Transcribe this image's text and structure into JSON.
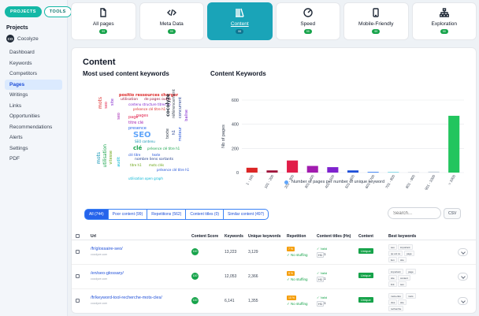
{
  "sidebar": {
    "toggle": [
      "PROJECTS",
      "TOOLS"
    ],
    "heading": "Projects",
    "project": {
      "initials": "CO",
      "name": "Cocolyze"
    },
    "items": [
      "Dashboard",
      "Keywords",
      "Competitors",
      "Pages",
      "Writings",
      "Links",
      "Opportunities",
      "Recommendations",
      "Alerts",
      "Settings",
      "PDF"
    ]
  },
  "cards": [
    {
      "label": "All pages",
      "badge": "99",
      "icon": "page-icon"
    },
    {
      "label": "Meta Data",
      "badge": "99",
      "icon": "code-icon"
    },
    {
      "label": "Content",
      "badge": "99",
      "icon": "books-icon"
    },
    {
      "label": "Speed",
      "badge": "99",
      "icon": "speedometer-icon"
    },
    {
      "label": "Mobile-Friendly",
      "badge": "99",
      "icon": "mobile-icon"
    },
    {
      "label": "Exploration",
      "badge": "99",
      "icon": "sitemap-icon"
    }
  ],
  "main": {
    "title": "Content",
    "left_heading": "Most used content keywords",
    "right_heading": "Content Keywords"
  },
  "wordcloud": [
    "positio ressources charger",
    "utilisation",
    "de pages outils",
    "contenu structure titres hn",
    "présence clé titre h1",
    "page",
    "pages",
    "titre clé",
    "presence",
    "SEO",
    "SEO contenu",
    "clé",
    "présence clé titre h1",
    "clé titre",
    "texte",
    "nombre liens sortants",
    "titre h1",
    "mots clés",
    "présence clé titre h1",
    "utilisation open graph",
    "mots",
    "seo",
    "site",
    "seo",
    "mots",
    "utilisation",
    "vitesse",
    "audit",
    "cocolyze",
    "référencement",
    "concurrent",
    "texte",
    "h1",
    "moteur",
    "balise"
  ],
  "chart_data": {
    "type": "bar",
    "title": "Content Keywords",
    "ylabel": "Nb of pages",
    "ylim": [
      0,
      600
    ],
    "yticks": [
      0,
      200,
      400,
      600
    ],
    "categories": [
      "1 - 100",
      "101 - 200",
      "201 - 300",
      "301 - 400",
      "401 - 500",
      "501 - 600",
      "601 - 700",
      "701 - 800",
      "801 - 900",
      "901 - 1000",
      "> 1000"
    ],
    "bar_colors": [
      "#dc2626",
      "#9f1239",
      "#e11d48",
      "#a21caf",
      "#7e22ce",
      "#1d4ed8",
      "#3b82f6",
      "#06b6d4",
      "#94a3b8",
      "#cbd5e1",
      "#22c55e"
    ],
    "values": [
      40,
      18,
      100,
      55,
      45,
      18,
      6,
      3,
      2,
      8,
      470
    ],
    "legend": "Number of pages per number of unique keyword"
  },
  "filters": [
    "All (744)",
    "Poor content (99)",
    "Repetitions (562)",
    "Content titles (0)",
    "Similar content (497)"
  ],
  "search": {
    "placeholder": "Search..."
  },
  "csv_label": "CSV",
  "table": {
    "headers": [
      "Url",
      "Content Score",
      "Keywords",
      "Unique keywords",
      "Repetition",
      "Content titles (Hn)",
      "Content",
      "Best keywords"
    ],
    "rows": [
      {
        "url": "/fr/glossaire-seo/",
        "url_sub": "cocolyze.com",
        "score": "100",
        "keywords": "13,223",
        "unique": "3,129",
        "repetition": "7 %",
        "nostuffing": "✓ No stuffing",
        "valid": "✓ Valid",
        "h1": "H1",
        "h1count": "1",
        "content": "Unique",
        "best": [
          "seo",
          "important",
          "qu est ce",
          "page",
          "lien",
          "site"
        ]
      },
      {
        "url": "/en/seo-glossary/",
        "url_sub": "cocolyze.com",
        "score": "100",
        "keywords": "12,053",
        "unique": "2,366",
        "repetition": "8 %",
        "nostuffing": "✓ No stuffing",
        "valid": "✓ Valid",
        "h1": "H1",
        "h1count": "1",
        "content": "Unique",
        "best": [
          "important",
          "page",
          "site",
          "content",
          "link",
          "seo"
        ]
      },
      {
        "url": "/fr/keyword-tool-recherche-mots-cles/",
        "url_sub": "cocolyze.com",
        "score": "100",
        "keywords": "6,141",
        "unique": "1,355",
        "repetition": "10 %",
        "nostuffing": "✓ No stuffing",
        "valid": "✓ Valid",
        "h1": "H1",
        "h1count": "1",
        "content": "Unique",
        "best": [
          "mots-clés",
          "mots",
          "clés",
          "site",
          "recherche"
        ]
      }
    ]
  }
}
